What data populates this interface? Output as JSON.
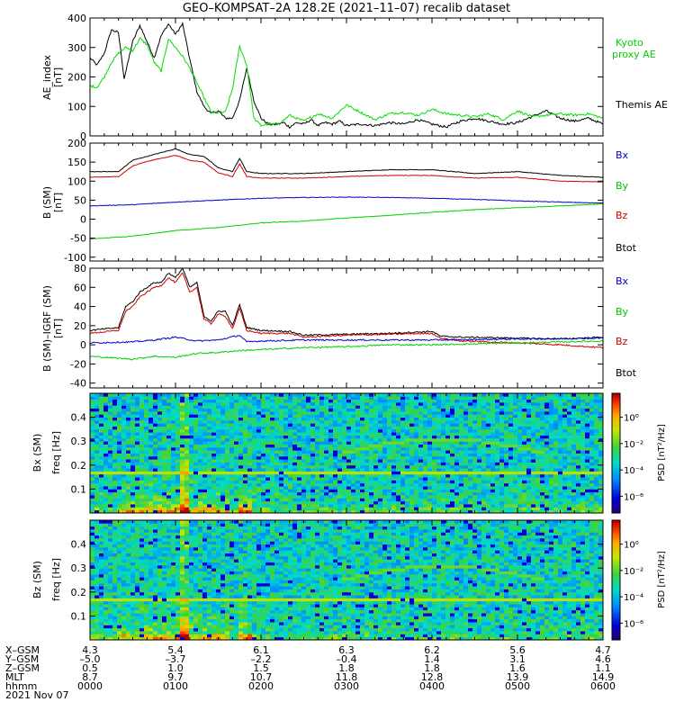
{
  "title": "GEO–KOMPSAT–2A 128.2E (2021–11–07) recalib dataset",
  "chart_data": [
    {
      "type": "line",
      "ylabel_line1": "AE_index",
      "ylabel_line2": "[nT]",
      "xlim": [
        0,
        6
      ],
      "ylim": [
        0,
        400
      ],
      "yticks": [
        "0",
        "100",
        "200",
        "300",
        "400"
      ],
      "series": [
        {
          "name": "Themis AE",
          "color": "#000000",
          "x": [
            0,
            0.083,
            0.167,
            0.25,
            0.333,
            0.4,
            0.5,
            0.583,
            0.667,
            0.75,
            0.833,
            0.917,
            1,
            1.083,
            1.167,
            1.25,
            1.333,
            1.417,
            1.5,
            1.583,
            1.667,
            1.75,
            1.833,
            1.917,
            2,
            2.083,
            2.133,
            2.2,
            2.267,
            2.333,
            2.417,
            2.5,
            2.583,
            2.667,
            2.75,
            2.833,
            2.917,
            3,
            3.167,
            3.333,
            3.5,
            3.667,
            3.833,
            4,
            4.167,
            4.333,
            4.5,
            4.667,
            4.833,
            5,
            5.167,
            5.333,
            5.5,
            5.667,
            5.833,
            6
          ],
          "y": [
            265,
            240,
            280,
            360,
            350,
            195,
            320,
            375,
            320,
            265,
            340,
            380,
            345,
            380,
            260,
            150,
            100,
            75,
            85,
            60,
            60,
            120,
            230,
            120,
            60,
            40,
            38,
            40,
            45,
            30,
            45,
            40,
            55,
            35,
            45,
            40,
            50,
            35,
            40,
            35,
            45,
            40,
            55,
            40,
            30,
            50,
            60,
            50,
            40,
            45,
            65,
            85,
            60,
            50,
            60,
            40
          ]
        },
        {
          "name": "Kyoto proxy AE",
          "color": "#00e000",
          "x": [
            0,
            0.083,
            0.167,
            0.25,
            0.333,
            0.417,
            0.5,
            0.583,
            0.667,
            0.75,
            0.833,
            0.917,
            1,
            1.083,
            1.167,
            1.25,
            1.333,
            1.417,
            1.5,
            1.583,
            1.667,
            1.75,
            1.833,
            1.917,
            2,
            2.083,
            2.167,
            2.25,
            2.333,
            2.5,
            2.667,
            2.833,
            3,
            3.167,
            3.333,
            3.5,
            3.667,
            3.833,
            4,
            4.167,
            4.333,
            4.5,
            4.667,
            4.833,
            5,
            5.167,
            5.333,
            5.5,
            5.667,
            5.833,
            6
          ],
          "y": [
            170,
            165,
            200,
            250,
            280,
            300,
            290,
            330,
            310,
            250,
            220,
            330,
            300,
            270,
            230,
            180,
            130,
            80,
            80,
            80,
            160,
            305,
            240,
            60,
            35,
            40,
            40,
            50,
            70,
            50,
            75,
            60,
            105,
            80,
            55,
            75,
            80,
            70,
            90,
            75,
            70,
            65,
            75,
            55,
            85,
            65,
            70,
            75,
            70,
            75,
            60
          ]
        }
      ],
      "legend": [
        "Kyoto proxy AE",
        "Themis AE"
      ]
    },
    {
      "type": "line",
      "ylabel_line1": "B (SM)",
      "ylabel_line2": "[nT]",
      "xlim": [
        0,
        6
      ],
      "ylim": [
        -110,
        200
      ],
      "yticks": [
        "-100",
        "-50",
        "0",
        "50",
        "100",
        "150",
        "200"
      ],
      "series": [
        {
          "name": "Btot",
          "color": "#000000",
          "x": [
            0,
            0.333,
            0.5,
            0.667,
            0.833,
            1,
            1.167,
            1.333,
            1.5,
            1.667,
            1.75,
            1.833,
            2,
            2.5,
            3,
            3.5,
            4,
            4.5,
            5,
            5.5,
            6
          ],
          "y": [
            125,
            125,
            155,
            165,
            175,
            185,
            170,
            165,
            135,
            125,
            160,
            125,
            120,
            120,
            125,
            130,
            130,
            120,
            125,
            115,
            110
          ]
        },
        {
          "name": "Bx",
          "color": "#d00000",
          "x": [
            0,
            0.333,
            0.5,
            0.667,
            0.833,
            1,
            1.167,
            1.333,
            1.5,
            1.667,
            1.75,
            1.833,
            2,
            2.5,
            3,
            3.5,
            4,
            4.5,
            5,
            5.5,
            6
          ],
          "y": [
            110,
            112,
            140,
            152,
            160,
            168,
            155,
            150,
            122,
            112,
            145,
            112,
            108,
            108,
            112,
            115,
            115,
            108,
            110,
            100,
            98
          ]
        },
        {
          "name": "By",
          "color": "#0000d0",
          "x": [
            0,
            0.5,
            1,
            1.5,
            2,
            2.5,
            3,
            3.5,
            4,
            4.5,
            5,
            5.5,
            6
          ],
          "y": [
            35,
            38,
            45,
            50,
            55,
            57,
            58,
            57,
            55,
            52,
            48,
            45,
            42
          ]
        },
        {
          "name": "Bz",
          "color": "#00d000",
          "x": [
            0,
            0.5,
            1,
            1.5,
            2,
            2.5,
            3,
            3.5,
            4,
            4.5,
            5,
            5.5,
            6
          ],
          "y": [
            -52,
            -45,
            -30,
            -22,
            -10,
            -5,
            3,
            10,
            18,
            25,
            30,
            35,
            40
          ]
        }
      ],
      "legend": [
        "Bx",
        "By",
        "Bz",
        "Btot"
      ]
    },
    {
      "type": "line",
      "ylabel_line1": "B (SM)–IGRF (SM)",
      "ylabel_line2": "[nT]",
      "xlim": [
        0,
        6
      ],
      "ylim": [
        -45,
        80
      ],
      "yticks": [
        "-40",
        "-20",
        "0",
        "20",
        "40",
        "60",
        "80"
      ],
      "series": [
        {
          "name": "Btot",
          "color": "#000000",
          "x": [
            0,
            0.333,
            0.417,
            0.5,
            0.583,
            0.667,
            0.75,
            0.833,
            0.917,
            1,
            1.083,
            1.167,
            1.25,
            1.333,
            1.417,
            1.5,
            1.583,
            1.667,
            1.75,
            1.833,
            2,
            2.333,
            2.5,
            3,
            3.5,
            4,
            4.1,
            4.333,
            5,
            5.5,
            6
          ],
          "y": [
            15,
            18,
            40,
            45,
            55,
            60,
            65,
            65,
            75,
            70,
            80,
            60,
            65,
            30,
            25,
            35,
            35,
            20,
            42,
            18,
            15,
            14,
            10,
            11,
            12,
            14,
            9,
            8,
            7,
            6,
            8
          ]
        },
        {
          "name": "Bx",
          "color": "#d00000",
          "x": [
            0,
            0.333,
            0.417,
            0.5,
            0.583,
            0.667,
            0.75,
            0.833,
            0.917,
            1,
            1.083,
            1.167,
            1.25,
            1.333,
            1.417,
            1.5,
            1.583,
            1.667,
            1.75,
            1.833,
            2,
            2.333,
            2.5,
            3,
            3.5,
            4,
            4.1,
            4.333,
            5,
            5.5,
            6
          ],
          "y": [
            12,
            15,
            35,
            40,
            50,
            55,
            60,
            62,
            70,
            65,
            75,
            55,
            60,
            27,
            22,
            32,
            30,
            17,
            38,
            15,
            12,
            12,
            8,
            10,
            11,
            12,
            7,
            4,
            2,
            0,
            -3
          ]
        },
        {
          "name": "By",
          "color": "#0000d0",
          "x": [
            0,
            0.5,
            0.75,
            1,
            1.25,
            1.5,
            1.75,
            1.833,
            2,
            2.5,
            3,
            4,
            5,
            6
          ],
          "y": [
            2,
            3,
            5,
            8,
            4,
            5,
            10,
            3,
            4,
            5,
            5,
            5,
            6,
            7
          ]
        },
        {
          "name": "Bz",
          "color": "#00d000",
          "x": [
            0,
            0.5,
            0.75,
            1,
            1.25,
            1.5,
            1.75,
            2,
            2.5,
            3,
            3.5,
            4,
            5,
            6
          ],
          "y": [
            -12,
            -15,
            -12,
            -13,
            -9,
            -8,
            -6,
            -5,
            -3,
            -2,
            0,
            0,
            2,
            4
          ]
        }
      ],
      "legend": [
        "Bx",
        "By",
        "Bz",
        "Btot"
      ]
    },
    {
      "type": "heatmap",
      "ylabel_line1": "Bx (SM)",
      "ylabel_line2": "freq [Hz]",
      "ylim": [
        0,
        0.5
      ],
      "yticks": [
        "0.1",
        "0.2",
        "0.3",
        "0.4"
      ],
      "colorbar_label": "PSD [nT²/Hz]",
      "colorbar_ticks": [
        "10⁰",
        "10⁻²",
        "10⁻⁴",
        "10⁻⁶"
      ]
    },
    {
      "type": "heatmap",
      "ylabel_line1": "Bz (SM)",
      "ylabel_line2": "freq [Hz]",
      "ylim": [
        0,
        0.5
      ],
      "yticks": [
        "0.1",
        "0.2",
        "0.3",
        "0.4"
      ],
      "colorbar_label": "PSD [nT²/Hz]",
      "colorbar_ticks": [
        "10⁰",
        "10⁻²",
        "10⁻⁴",
        "10⁻⁶"
      ]
    }
  ],
  "ephemeris": {
    "labels": [
      "X–GSM",
      "Y–GSM",
      "Z–GSM",
      "MLT",
      "hhmm",
      "2021 Nov 07"
    ],
    "rows": [
      [
        "4.3",
        "5.4",
        "6.1",
        "6.3",
        "6.2",
        "5.6",
        "4.7"
      ],
      [
        "–5.0",
        "–3.7",
        "–2.2",
        "–0.4",
        "1.4",
        "3.1",
        "4.6"
      ],
      [
        "0.5",
        "1.0",
        "1.5",
        "1.8",
        "1.8",
        "1.6",
        "1.1"
      ],
      [
        "8.7",
        "9.7",
        "10.7",
        "11.8",
        "12.8",
        "13.9",
        "14.9"
      ],
      [
        "0000",
        "0100",
        "0200",
        "0300",
        "0400",
        "0500",
        "0600"
      ]
    ]
  }
}
